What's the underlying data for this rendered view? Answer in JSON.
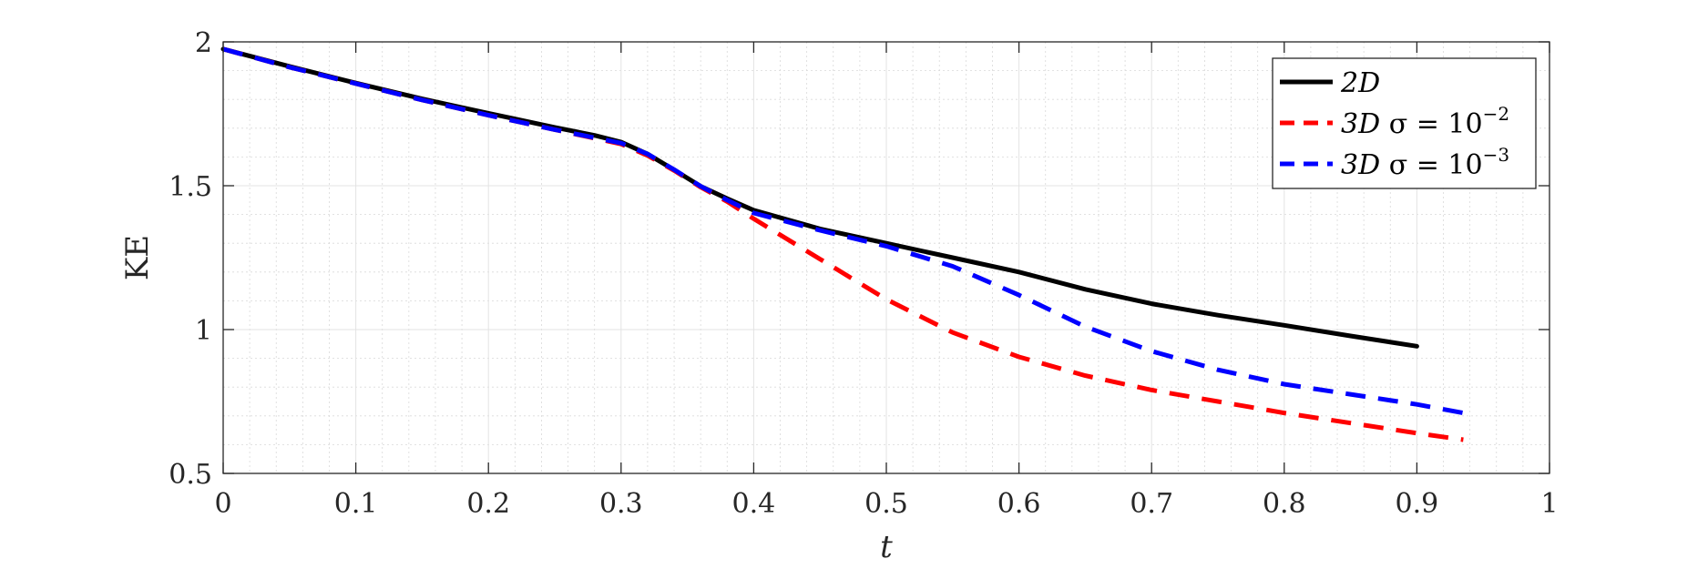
{
  "chart_data": {
    "type": "line",
    "xlabel": "t",
    "ylabel": "KE",
    "xlim": [
      0,
      1
    ],
    "ylim": [
      0.5,
      2
    ],
    "xticks": [
      0,
      0.1,
      0.2,
      0.3,
      0.4,
      0.5,
      0.6,
      0.7,
      0.8,
      0.9,
      1
    ],
    "yticks": [
      0.5,
      1,
      1.5,
      2
    ],
    "xtick_labels": [
      "0",
      "0.1",
      "0.2",
      "0.3",
      "0.4",
      "0.5",
      "0.6",
      "0.7",
      "0.8",
      "0.9",
      "1"
    ],
    "ytick_labels": [
      "0.5",
      "1",
      "1.5",
      "2"
    ],
    "grid": true,
    "minor_grid": true,
    "legend_position": "top-right",
    "series": [
      {
        "name": "2D",
        "name_main": "2D",
        "name_sigma": "",
        "name_exp": "",
        "color": "#000000",
        "style": "solid",
        "x": [
          0,
          0.05,
          0.1,
          0.15,
          0.2,
          0.25,
          0.28,
          0.3,
          0.32,
          0.34,
          0.36,
          0.38,
          0.4,
          0.45,
          0.5,
          0.55,
          0.6,
          0.65,
          0.7,
          0.75,
          0.8,
          0.85,
          0.9
        ],
        "y": [
          1.975,
          1.915,
          1.857,
          1.802,
          1.752,
          1.703,
          1.675,
          1.652,
          1.61,
          1.555,
          1.498,
          1.455,
          1.415,
          1.35,
          1.3,
          1.25,
          1.2,
          1.14,
          1.09,
          1.05,
          1.015,
          0.978,
          0.942
        ]
      },
      {
        "name": "3D σ = 10^-2",
        "name_main": "3D",
        "name_sigma": "σ = 10",
        "name_exp": "−2",
        "color": "#ff0000",
        "style": "dashed",
        "x": [
          0,
          0.05,
          0.1,
          0.15,
          0.2,
          0.25,
          0.3,
          0.32,
          0.34,
          0.36,
          0.38,
          0.4,
          0.45,
          0.5,
          0.55,
          0.6,
          0.65,
          0.7,
          0.75,
          0.8,
          0.85,
          0.9,
          0.935
        ],
        "y": [
          1.975,
          1.912,
          1.855,
          1.798,
          1.745,
          1.695,
          1.645,
          1.605,
          1.553,
          1.495,
          1.445,
          1.385,
          1.245,
          1.105,
          0.99,
          0.905,
          0.84,
          0.79,
          0.75,
          0.71,
          0.675,
          0.64,
          0.617
        ]
      },
      {
        "name": "3D σ = 10^-3",
        "name_main": "3D",
        "name_sigma": "σ = 10",
        "name_exp": "−3",
        "color": "#0000ff",
        "style": "dashed",
        "x": [
          0,
          0.05,
          0.1,
          0.15,
          0.2,
          0.25,
          0.3,
          0.32,
          0.34,
          0.36,
          0.38,
          0.4,
          0.45,
          0.5,
          0.55,
          0.6,
          0.65,
          0.7,
          0.75,
          0.8,
          0.85,
          0.9,
          0.935
        ],
        "y": [
          1.975,
          1.912,
          1.855,
          1.798,
          1.745,
          1.695,
          1.648,
          1.61,
          1.556,
          1.498,
          1.45,
          1.405,
          1.345,
          1.29,
          1.22,
          1.12,
          1.01,
          0.925,
          0.86,
          0.81,
          0.775,
          0.74,
          0.71
        ]
      }
    ]
  }
}
